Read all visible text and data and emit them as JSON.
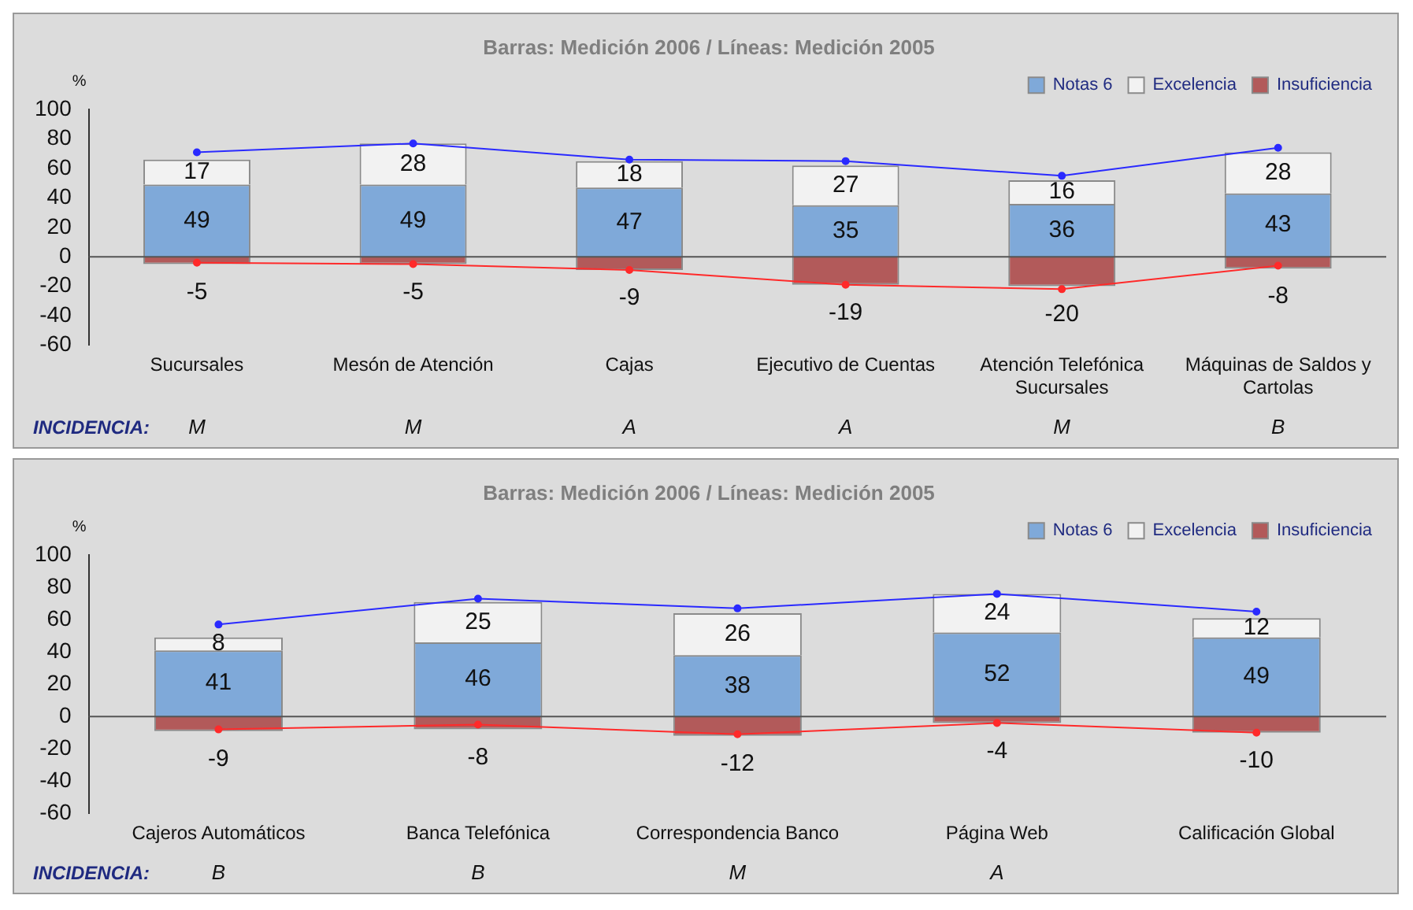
{
  "chart_data": [
    {
      "type": "bar",
      "title": "Barras: Medición 2006 / Líneas: Medición 2005",
      "ylabel": "%",
      "categories": [
        "Sucursales",
        "Mesón de Atención",
        "Cajas",
        "Ejecutivo de Cuentas",
        "Atención Telefónica Sucursales",
        "Máquinas de Saldos y Cartolas"
      ],
      "stacked": true,
      "ylim": [
        -60,
        100
      ],
      "yticks": [
        -60,
        -40,
        -20,
        0,
        20,
        40,
        60,
        80,
        100
      ],
      "grid": false,
      "legend": "top right",
      "annotations": [
        "INCIDENCIA:",
        "M",
        "M",
        "A",
        "A",
        "M",
        "B"
      ],
      "ref_lines": [
        {
          "axis": "y",
          "value": 0,
          "color": "#555555"
        }
      ],
      "series": [
        {
          "name": "Notas 6",
          "color": "#7fa9d9",
          "values": [
            49,
            49,
            47,
            35,
            36,
            43
          ],
          "value_labels": [
            "49",
            "49",
            "47",
            "35",
            "36",
            "43"
          ]
        },
        {
          "name": "Excelencia",
          "color": "#f2f2f2",
          "values": [
            17,
            28,
            18,
            27,
            16,
            28
          ],
          "value_labels": [
            "17",
            "28",
            "18",
            "27",
            "16",
            "28"
          ]
        },
        {
          "name": "Insuficiencia",
          "color": "#b25a5a",
          "values": [
            -5,
            -5,
            -9,
            -19,
            -20,
            -8
          ],
          "value_labels": [
            "-5",
            "-5",
            "-9",
            "-19",
            "-20",
            "-8"
          ]
        },
        {
          "type": "line",
          "color": "#2a2aff",
          "marker": "circle",
          "values": [
            71,
            77,
            66,
            65,
            55,
            74
          ]
        },
        {
          "type": "line",
          "color": "#ff2a2a",
          "marker": "circle",
          "values": [
            -4,
            -5,
            -9,
            -19,
            -22,
            -6
          ]
        }
      ]
    },
    {
      "type": "bar",
      "title": "Barras: Medición 2006 / Líneas: Medición 2005",
      "ylabel": "%",
      "categories": [
        "Cajeros Automáticos",
        "Banca Telefónica",
        "Correspondencia Banco",
        "Página Web",
        "Calificación Global"
      ],
      "stacked": true,
      "ylim": [
        -60,
        100
      ],
      "yticks": [
        -60,
        -40,
        -20,
        0,
        20,
        40,
        60,
        80,
        100
      ],
      "grid": false,
      "legend": "top right",
      "annotations": [
        "INCIDENCIA:",
        "B",
        "B",
        "M",
        "A"
      ],
      "ref_lines": [
        {
          "axis": "y",
          "value": 0,
          "color": "#555555"
        }
      ],
      "series": [
        {
          "name": "Notas 6",
          "color": "#7fa9d9",
          "values": [
            41,
            46,
            38,
            52,
            49
          ],
          "value_labels": [
            "41",
            "46",
            "38",
            "52",
            "49"
          ]
        },
        {
          "name": "Excelencia",
          "color": "#f2f2f2",
          "values": [
            8,
            25,
            26,
            24,
            12
          ],
          "value_labels": [
            "8",
            "25",
            "26",
            "24",
            "12"
          ]
        },
        {
          "name": "Insuficiencia",
          "color": "#b25a5a",
          "values": [
            -9,
            -8,
            -12,
            -4,
            -10
          ],
          "value_labels": [
            "-9",
            "-8",
            "-12",
            "-4",
            "-10"
          ]
        },
        {
          "type": "line",
          "color": "#2a2aff",
          "marker": "circle",
          "values": [
            57,
            73,
            67,
            76,
            65
          ]
        },
        {
          "type": "line",
          "color": "#ff2a2a",
          "marker": "circle",
          "values": [
            -8,
            -5,
            -11,
            -4,
            -10
          ]
        }
      ]
    }
  ]
}
